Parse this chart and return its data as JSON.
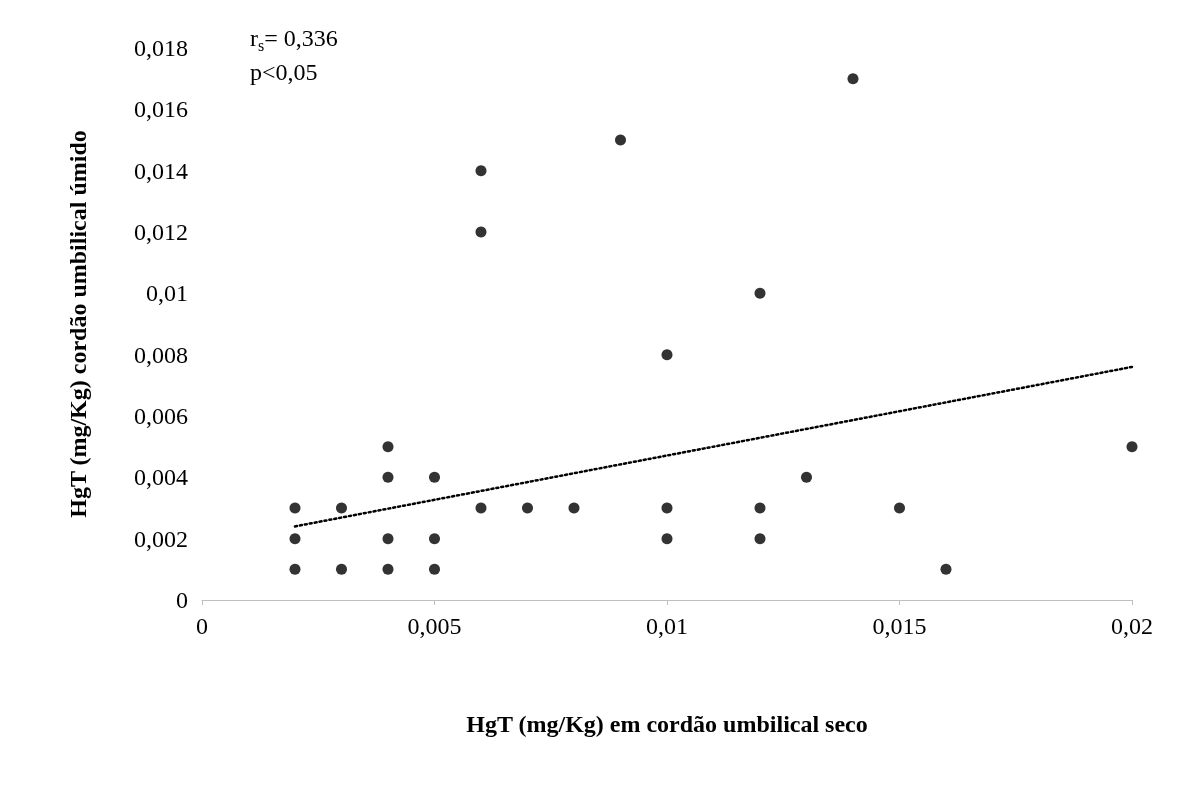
{
  "chart_data": {
    "type": "scatter",
    "xlabel": "HgT (mg/Kg) em cordão umbilical seco",
    "ylabel": "HgT (mg/Kg) cordão umbilical úmido",
    "annotations": [
      "r$_{s}$= 0,336",
      "p<0,05"
    ],
    "marker": "circle",
    "grid": false,
    "xlim": [
      0,
      0.02
    ],
    "ylim": [
      0,
      0.018
    ],
    "xticks": [
      0,
      {
        "value": 0.005,
        "label": "0,005"
      },
      {
        "value": 0.01,
        "label": "0,01"
      },
      {
        "value": 0.015,
        "label": "0,015"
      },
      {
        "value": 0.02,
        "label": "0,02"
      }
    ],
    "yticks": [
      0,
      {
        "value": 0.002,
        "label": "0,002"
      },
      {
        "value": 0.004,
        "label": "0,004"
      },
      {
        "value": 0.006,
        "label": "0,006"
      },
      {
        "value": 0.008,
        "label": "0,008"
      },
      {
        "value": 0.01,
        "label": "0,01"
      },
      {
        "value": 0.012,
        "label": "0,012"
      },
      {
        "value": 0.014,
        "label": "0,014"
      },
      {
        "value": 0.016,
        "label": "0,016"
      },
      {
        "value": 0.018,
        "label": "0,018"
      }
    ],
    "series": [
      {
        "color": "#000000",
        "x": [
          0.002,
          0.002,
          0.002,
          0.003,
          0.003,
          0.004,
          0.004,
          0.004,
          0.004,
          0.005,
          0.005,
          0.005,
          0.006,
          0.006,
          0.006,
          0.007,
          0.008,
          0.009,
          0.01,
          0.01,
          0.01,
          0.012,
          0.012,
          0.012,
          0.013,
          0.014,
          0.015,
          0.016,
          0.02
        ],
        "values": [
          0.003,
          0.002,
          0.001,
          0.003,
          0.001,
          0.005,
          0.004,
          0.002,
          0.001,
          0.004,
          0.002,
          0.001,
          0.014,
          0.012,
          0.003,
          0.003,
          0.003,
          0.015,
          0.008,
          0.003,
          0.002,
          0.01,
          0.003,
          0.002,
          0.004,
          0.017,
          0.003,
          0.001,
          0.005
        ]
      },
      {
        "type": "line",
        "color": "#000000",
        "line_style": "dotted",
        "marker": "none",
        "x": [
          0.002,
          0.02
        ],
        "values": [
          0.0024,
          0.0076
        ]
      }
    ]
  }
}
